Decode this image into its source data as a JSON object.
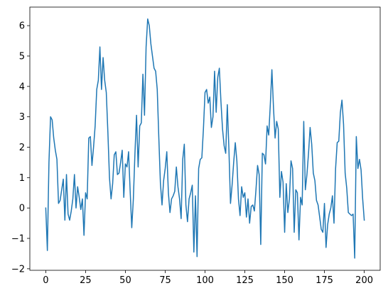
{
  "chart_data": {
    "type": "line",
    "color": "#1f77b4",
    "x": [
      0,
      1,
      2,
      3,
      4,
      5,
      6,
      7,
      8,
      9,
      10,
      11,
      12,
      13,
      14,
      15,
      16,
      17,
      18,
      19,
      20,
      21,
      22,
      23,
      24,
      25,
      26,
      27,
      28,
      29,
      30,
      31,
      32,
      33,
      34,
      35,
      36,
      37,
      38,
      39,
      40,
      41,
      42,
      43,
      44,
      45,
      46,
      47,
      48,
      49,
      50,
      51,
      52,
      53,
      54,
      55,
      56,
      57,
      58,
      59,
      60,
      61,
      62,
      63,
      64,
      65,
      66,
      67,
      68,
      69,
      70,
      71,
      72,
      73,
      74,
      75,
      76,
      77,
      78,
      79,
      80,
      81,
      82,
      83,
      84,
      85,
      86,
      87,
      88,
      89,
      90,
      91,
      92,
      93,
      94,
      95,
      96,
      97,
      98,
      99,
      100,
      101,
      102,
      103,
      104,
      105,
      106,
      107,
      108,
      109,
      110,
      111,
      112,
      113,
      114,
      115,
      116,
      117,
      118,
      119,
      120,
      121,
      122,
      123,
      124,
      125,
      126,
      127,
      128,
      129,
      130,
      131,
      132,
      133,
      134,
      135,
      136,
      137,
      138,
      139,
      140,
      141,
      142,
      143,
      144,
      145,
      146,
      147,
      148,
      149,
      150,
      151,
      152,
      153,
      154,
      155,
      156,
      157,
      158,
      159,
      160,
      161,
      162,
      163,
      164,
      165,
      166,
      167,
      168,
      169,
      170,
      171,
      172,
      173,
      174,
      175,
      176,
      177,
      178,
      179,
      180,
      181,
      182,
      183,
      184,
      185,
      186,
      187,
      188,
      189,
      190,
      191,
      192,
      193,
      194,
      195,
      196,
      197,
      198,
      199,
      200
    ],
    "values": [
      0,
      -1.4,
      1.5,
      3.0,
      2.9,
      2.3,
      1.9,
      1.6,
      0.15,
      0.25,
      0.6,
      0.95,
      -0.4,
      1.1,
      -0.2,
      -0.4,
      -0.1,
      0.3,
      1.1,
      0.0,
      0.7,
      0.35,
      -0.05,
      0.3,
      -0.9,
      0.5,
      0.3,
      2.3,
      2.35,
      1.4,
      2.0,
      2.7,
      3.9,
      4.2,
      5.3,
      3.9,
      4.95,
      4.2,
      3.8,
      2.5,
      1.0,
      0.3,
      0.8,
      1.75,
      1.85,
      1.1,
      1.15,
      1.5,
      1.9,
      0.35,
      1.45,
      1.35,
      1.85,
      0.55,
      -0.65,
      0.3,
      1.8,
      3.05,
      1.35,
      2.7,
      2.8,
      4.4,
      3.05,
      5.3,
      6.22,
      6.0,
      5.4,
      5.0,
      4.6,
      4.5,
      3.9,
      2.3,
      0.8,
      0.1,
      0.9,
      1.3,
      1.85,
      0.5,
      -0.15,
      0.3,
      0.4,
      0.55,
      1.35,
      0.7,
      0.3,
      -0.35,
      1.6,
      2.1,
      0.1,
      -0.45,
      0.3,
      0.5,
      0.75,
      -1.45,
      0.4,
      -1.6,
      1.3,
      1.6,
      1.65,
      2.6,
      3.8,
      3.9,
      3.45,
      3.65,
      2.65,
      3.0,
      4.5,
      3.15,
      4.3,
      4.6,
      3.5,
      2.6,
      2.05,
      1.8,
      3.4,
      1.95,
      0.15,
      0.75,
      1.5,
      2.15,
      1.55,
      0.3,
      -0.25,
      0.7,
      0.35,
      0.5,
      -0.3,
      0.3,
      -0.5,
      0.05,
      0.1,
      -0.1,
      0.6,
      1.4,
      1.1,
      -1.2,
      1.8,
      1.75,
      1.45,
      2.7,
      2.4,
      3.4,
      4.55,
      3.3,
      2.3,
      2.85,
      2.6,
      0.35,
      1.2,
      0.85,
      -0.8,
      0.8,
      -0.15,
      0.3,
      1.55,
      1.3,
      -0.8,
      0.6,
      0.5,
      -1.05,
      0.35,
      0.1,
      2.85,
      0.6,
      1.1,
      1.8,
      2.65,
      2.1,
      1.15,
      0.9,
      0.25,
      0.1,
      -0.3,
      -0.7,
      -0.8,
      0.15,
      -1.3,
      -0.55,
      -0.2,
      0.0,
      0.4,
      -0.5,
      1.3,
      2.15,
      2.2,
      3.15,
      3.55,
      2.75,
      1.15,
      0.65,
      -0.15,
      -0.2,
      -0.25,
      -0.2,
      -1.65,
      2.35,
      1.3,
      1.6,
      1.25,
      0.3,
      -0.4
    ],
    "xlim": [
      -10,
      210
    ],
    "xticks": [
      0,
      25,
      50,
      75,
      100,
      125,
      150,
      175,
      200
    ],
    "ylim": [
      -2.05,
      6.61
    ],
    "yticks": [
      {
        "value": -2,
        "label": "−2"
      },
      {
        "value": -1,
        "label": "−1"
      },
      0,
      1,
      2,
      3,
      4,
      5,
      6
    ]
  }
}
